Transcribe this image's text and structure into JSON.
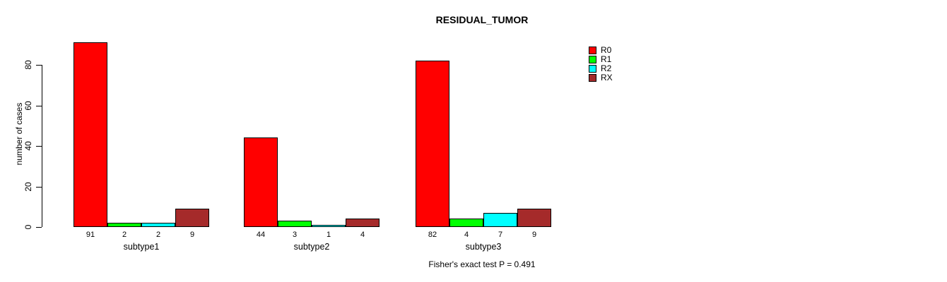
{
  "annotation": "Fisher's exact test P = 0.491",
  "chart_data": {
    "type": "bar",
    "title": "RESIDUAL_TUMOR",
    "xlabel": "",
    "ylabel": "number of cases",
    "categories": [
      "subtype1",
      "subtype2",
      "subtype3"
    ],
    "series": [
      {
        "name": "R0",
        "color": "#ff0000",
        "values": [
          91,
          44,
          82
        ]
      },
      {
        "name": "R1",
        "color": "#00ff00",
        "values": [
          2,
          3,
          4
        ]
      },
      {
        "name": "R2",
        "color": "#00ffff",
        "values": [
          2,
          1,
          7
        ]
      },
      {
        "name": "RX",
        "color": "#a52a2a",
        "values": [
          9,
          4,
          9
        ]
      }
    ],
    "yticks": [
      0,
      20,
      40,
      60,
      80
    ],
    "ylim": [
      0,
      92
    ],
    "grid": false,
    "grouped": true,
    "bar_value_labels": true,
    "legend_position": "top-right",
    "legend_entries": [
      "R0",
      "R1",
      "R2",
      "RX"
    ]
  }
}
